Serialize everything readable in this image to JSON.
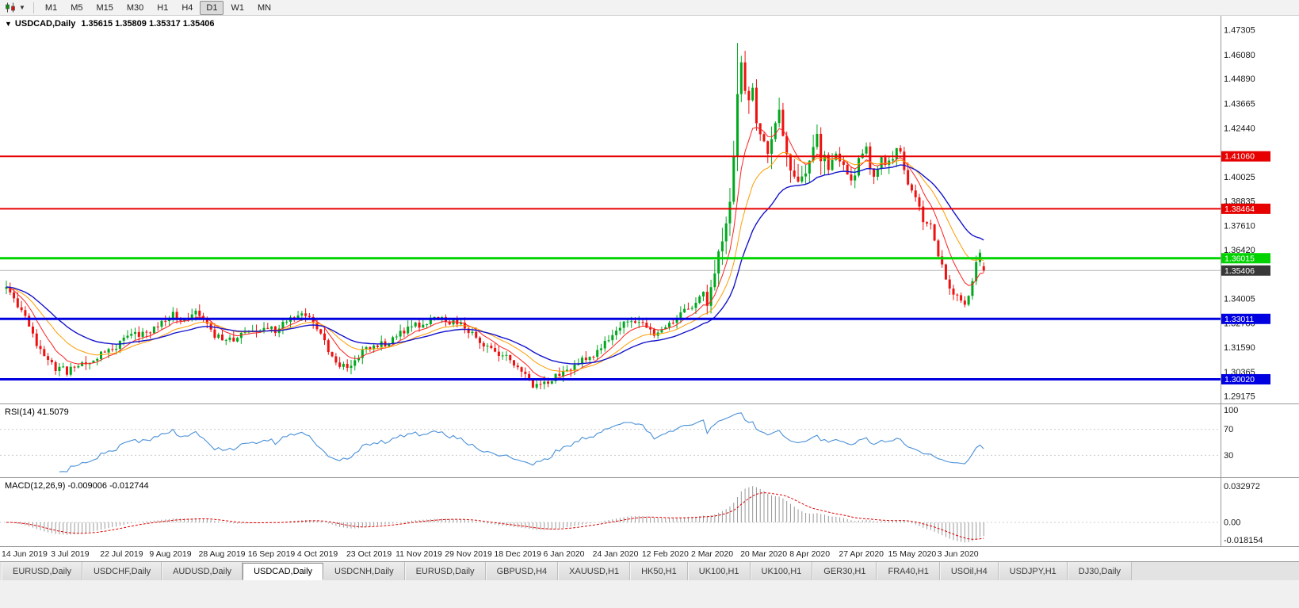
{
  "toolbar": {
    "timeframes": [
      "M1",
      "M5",
      "M15",
      "M30",
      "H1",
      "H4",
      "D1",
      "W1",
      "MN"
    ],
    "active_timeframe": "D1"
  },
  "chart": {
    "caret": "▼",
    "title_symbol": "USDCAD,Daily",
    "title_ohlc": "1.35615 1.35809 1.35317 1.35406"
  },
  "rsi_panel": {
    "label": "RSI(14) 41.5079"
  },
  "macd_panel": {
    "label": "MACD(12,26,9) -0.009006 -0.012744"
  },
  "tabs": {
    "items": [
      "EURUSD,Daily",
      "USDCHF,Daily",
      "AUDUSD,Daily",
      "USDCAD,Daily",
      "USDCNH,Daily",
      "EURUSD,Daily",
      "GBPUSD,H4",
      "XAUUSD,H1",
      "HK50,H1",
      "UK100,H1",
      "UK100,H1",
      "GER30,H1",
      "FRA40,H1",
      "USOil,H4",
      "USDJPY,H1",
      "DJ30,Daily"
    ],
    "active_index": 3
  },
  "chart_data": {
    "type": "candlestick",
    "symbol": "USDCAD",
    "timeframe": "Daily",
    "ohlc": {
      "open": 1.35615,
      "high": 1.35809,
      "low": 1.35317,
      "close": 1.35406
    },
    "num_candles": 259,
    "label_step": 13,
    "x_labels": [
      "14 Jun 2019",
      "3 Jul 2019",
      "22 Jul 2019",
      "9 Aug 2019",
      "28 Aug 2019",
      "16 Sep 2019",
      "4 Oct 2019",
      "23 Oct 2019",
      "11 Nov 2019",
      "29 Nov 2019",
      "18 Dec 2019",
      "6 Jan 2020",
      "24 Jan 2020",
      "12 Feb 2020",
      "2 Mar 2020",
      "20 Mar 2020",
      "8 Apr 2020",
      "27 Apr 2020",
      "15 May 2020",
      "3 Jun 2020"
    ],
    "price_axis": {
      "max": 1.479,
      "min": 1.289,
      "labels": [
        "1.47305",
        "1.46080",
        "1.44890",
        "1.43665",
        "1.42440",
        "1.40025",
        "1.38835",
        "1.37610",
        "1.36420",
        "1.34005",
        "1.32780",
        "1.31590",
        "1.30365",
        "1.29175"
      ]
    },
    "levels": [
      {
        "price": 1.4106,
        "label": "1.41060",
        "color": "#e60000",
        "thickness": 2
      },
      {
        "price": 1.38464,
        "label": "1.38464",
        "color": "#e60000",
        "thickness": 2
      },
      {
        "price": 1.36015,
        "label": "1.36015",
        "color": "#00d300",
        "thickness": 3
      },
      {
        "price": 1.33011,
        "label": "1.33011",
        "color": "#0000e0",
        "thickness": 3
      },
      {
        "price": 1.3002,
        "label": "1.30020",
        "color": "#0000e0",
        "thickness": 3
      }
    ],
    "current_price": {
      "value": 1.35406,
      "label": "1.35406",
      "line_color": "#b4b4b4",
      "box_color": "#383838"
    },
    "candle_colors": {
      "up": "#00a81e",
      "down": "#ef1010"
    },
    "moving_averages": [
      {
        "period": 8,
        "color": "#ff2020",
        "width": 1
      },
      {
        "period": 17,
        "color": "#ff9c00",
        "width": 1
      },
      {
        "period": 30,
        "color": "#1414cc",
        "width": 1.4
      }
    ],
    "price_path": [
      [
        0,
        1.345
      ],
      [
        2,
        1.3395
      ],
      [
        4,
        1.3335
      ],
      [
        6,
        1.327
      ],
      [
        8,
        1.318
      ],
      [
        10,
        1.311
      ],
      [
        13,
        1.306
      ],
      [
        16,
        1.3042
      ],
      [
        19,
        1.3075
      ],
      [
        22,
        1.31
      ],
      [
        26,
        1.313
      ],
      [
        29,
        1.316
      ],
      [
        32,
        1.321
      ],
      [
        35,
        1.3225
      ],
      [
        39,
        1.3248
      ],
      [
        42,
        1.33
      ],
      [
        44,
        1.3322
      ],
      [
        46,
        1.3288
      ],
      [
        48,
        1.3312
      ],
      [
        50,
        1.3338
      ],
      [
        52,
        1.3292
      ],
      [
        55,
        1.3218
      ],
      [
        58,
        1.3192
      ],
      [
        61,
        1.3208
      ],
      [
        65,
        1.3242
      ],
      [
        68,
        1.3256
      ],
      [
        71,
        1.3247
      ],
      [
        74,
        1.3288
      ],
      [
        77,
        1.3322
      ],
      [
        79,
        1.333
      ],
      [
        82,
        1.3258
      ],
      [
        85,
        1.3152
      ],
      [
        88,
        1.3072
      ],
      [
        90,
        1.3058
      ],
      [
        93,
        1.3122
      ],
      [
        96,
        1.3158
      ],
      [
        100,
        1.3178
      ],
      [
        104,
        1.3238
      ],
      [
        108,
        1.3268
      ],
      [
        112,
        1.3292
      ],
      [
        115,
        1.3302
      ],
      [
        117,
        1.3282
      ],
      [
        120,
        1.3288
      ],
      [
        123,
        1.3228
      ],
      [
        126,
        1.3168
      ],
      [
        130,
        1.3132
      ],
      [
        133,
        1.3102
      ],
      [
        136,
        1.3038
      ],
      [
        139,
        1.2962
      ],
      [
        141,
        1.2968
      ],
      [
        143,
        1.2996
      ],
      [
        146,
        1.3032
      ],
      [
        149,
        1.3062
      ],
      [
        152,
        1.3102
      ],
      [
        156,
        1.3138
      ],
      [
        159,
        1.3208
      ],
      [
        162,
        1.3262
      ],
      [
        165,
        1.3298
      ],
      [
        167,
        1.3272
      ],
      [
        169,
        1.3258
      ],
      [
        171,
        1.3232
      ],
      [
        174,
        1.3262
      ],
      [
        177,
        1.3302
      ],
      [
        180,
        1.3358
      ],
      [
        182,
        1.3382
      ],
      [
        184,
        1.3422
      ],
      [
        185,
        1.3392
      ],
      [
        187,
        1.3552
      ],
      [
        189,
        1.3712
      ],
      [
        191,
        1.3855
      ],
      [
        192,
        1.415
      ],
      [
        193,
        1.445
      ],
      [
        194,
        1.456
      ],
      [
        195,
        1.444
      ],
      [
        196,
        1.4372
      ],
      [
        197,
        1.448
      ],
      [
        198,
        1.4312
      ],
      [
        199,
        1.4232
      ],
      [
        200,
        1.4162
      ],
      [
        201,
        1.4105
      ],
      [
        202,
        1.4222
      ],
      [
        203,
        1.4302
      ],
      [
        204,
        1.4332
      ],
      [
        205,
        1.4192
      ],
      [
        206,
        1.4082
      ],
      [
        207,
        1.4042
      ],
      [
        208,
        1.4018
      ],
      [
        209,
        1.3952
      ],
      [
        210,
        1.3982
      ],
      [
        211,
        1.4062
      ],
      [
        212,
        1.4112
      ],
      [
        213,
        1.4172
      ],
      [
        214,
        1.4182
      ],
      [
        215,
        1.4122
      ],
      [
        216,
        1.4082
      ],
      [
        217,
        1.4032
      ],
      [
        218,
        1.4062
      ],
      [
        219,
        1.4102
      ],
      [
        220,
        1.4082
      ],
      [
        221,
        1.4042
      ],
      [
        222,
        1.3992
      ],
      [
        223,
        1.3962
      ],
      [
        224,
        1.4022
      ],
      [
        225,
        1.4082
      ],
      [
        226,
        1.4122
      ],
      [
        227,
        1.4132
      ],
      [
        228,
        1.4062
      ],
      [
        229,
        1.4002
      ],
      [
        230,
        1.4052
      ],
      [
        231,
        1.4102
      ],
      [
        232,
        1.4082
      ],
      [
        233,
        1.4062
      ],
      [
        234,
        1.4102
      ],
      [
        235,
        1.4122
      ],
      [
        236,
        1.4112
      ],
      [
        237,
        1.4042
      ],
      [
        238,
        1.3988
      ],
      [
        239,
        1.3952
      ],
      [
        240,
        1.3908
      ],
      [
        241,
        1.3842
      ],
      [
        242,
        1.3792
      ],
      [
        243,
        1.3762
      ],
      [
        244,
        1.3756
      ],
      [
        245,
        1.3682
      ],
      [
        246,
        1.3622
      ],
      [
        247,
        1.3562
      ],
      [
        248,
        1.3502
      ],
      [
        249,
        1.3448
      ],
      [
        250,
        1.3432
      ],
      [
        251,
        1.3418
      ],
      [
        252,
        1.3402
      ],
      [
        253,
        1.3386
      ],
      [
        254,
        1.3402
      ],
      [
        255,
        1.3496
      ],
      [
        256,
        1.3582
      ],
      [
        257,
        1.3616
      ],
      [
        258,
        1.35406
      ]
    ],
    "extremes": [
      {
        "index": 16,
        "low": 1.3016
      },
      {
        "index": 140,
        "low": 1.2951
      },
      {
        "index": 193,
        "high": 1.4668
      },
      {
        "index": 253,
        "low": 1.3358
      }
    ],
    "rsi": {
      "period": 14,
      "value": 41.5079,
      "color": "#4a90d9",
      "levels": [
        70,
        30
      ],
      "axis_labels": [
        "100",
        "70",
        "30"
      ]
    },
    "macd": {
      "fast": 12,
      "slow": 26,
      "signal": 9,
      "values_text": [
        "-0.009006",
        "-0.012744"
      ],
      "histogram_color": "#989898",
      "signal_color": "#e00000",
      "axis_labels": [
        "0.032972",
        "0.00",
        "-0.018154"
      ],
      "range": {
        "max": 0.033,
        "min": -0.0182
      }
    }
  }
}
